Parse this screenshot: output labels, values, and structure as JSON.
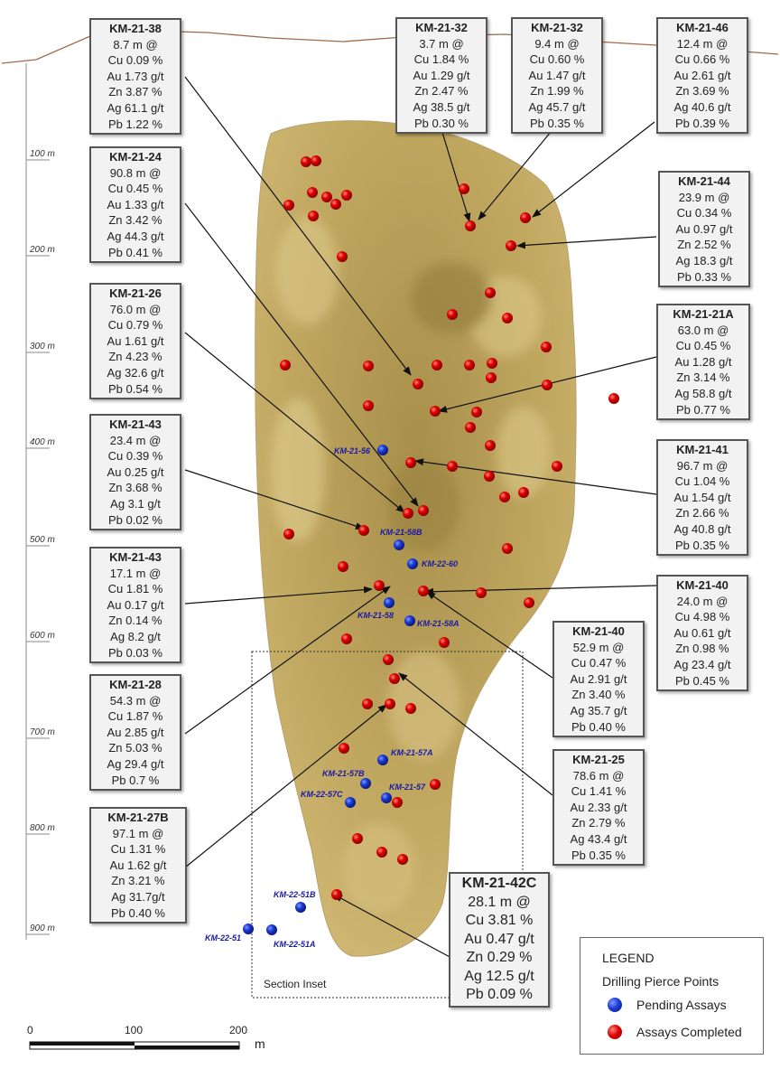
{
  "colors": {
    "assays_completed": "#e00000",
    "pending_assays": "#1c3bd6",
    "lens_fill": "#b39a52",
    "surface_line": "#a06a4a"
  },
  "depth_axis": {
    "unit": "m",
    "labels": [
      "100 m",
      "200 m",
      "300 m",
      "400 m",
      "500 m",
      "600 m",
      "700 m",
      "800 m",
      "900 m"
    ]
  },
  "callouts": [
    {
      "hole": "KM-21-38",
      "lines": [
        "8.7 m @",
        "Cu 0.09 %",
        "Au 1.73 g/t",
        "Zn 3.87 %",
        "Ag 61.1 g/t",
        "Pb 1.22 %"
      ]
    },
    {
      "hole": "KM-21-32",
      "lines": [
        "3.7 m @",
        "Cu 1.84 %",
        "Au 1.29 g/t",
        "Zn 2.47 %",
        "Ag 38.5 g/t",
        "Pb 0.30 %"
      ]
    },
    {
      "hole": "KM-21-32",
      "lines": [
        "9.4 m @",
        "Cu 0.60 %",
        "Au 1.47 g/t",
        "Zn 1.99 %",
        "Ag 45.7 g/t",
        "Pb 0.35 %"
      ]
    },
    {
      "hole": "KM-21-46",
      "lines": [
        "12.4 m @",
        "Cu 0.66 %",
        "Au 2.61 g/t",
        "Zn 3.69 %",
        "Ag 40.6 g/t",
        "Pb 0.39 %"
      ]
    },
    {
      "hole": "KM-21-24",
      "lines": [
        "90.8 m @",
        "Cu 0.45 %",
        "Au 1.33 g/t",
        "Zn 3.42 %",
        "Ag 44.3 g/t",
        "Pb 0.41 %"
      ]
    },
    {
      "hole": "KM-21-44",
      "lines": [
        "23.9 m @",
        "Cu 0.34 %",
        "Au 0.97 g/t",
        "Zn 2.52 %",
        "Ag 18.3 g/t",
        "Pb 0.33 %"
      ]
    },
    {
      "hole": "KM-21-26",
      "lines": [
        "76.0 m @",
        "Cu 0.79 %",
        "Au 1.61 g/t",
        "Zn 4.23 %",
        "Ag 32.6 g/t",
        "Pb 0.54 %"
      ]
    },
    {
      "hole": "KM-21-21A",
      "lines": [
        "63.0 m @",
        "Cu 0.45 %",
        "Au 1.28 g/t",
        "Zn 3.14 %",
        "Ag 58.8 g/t",
        "Pb 0.77 %"
      ]
    },
    {
      "hole": "KM-21-43",
      "lines": [
        "23.4 m @",
        "Cu 0.39 %",
        "Au 0.25 g/t",
        "Zn 3.68 %",
        "Ag 3.1 g/t",
        "Pb 0.02 %"
      ]
    },
    {
      "hole": "KM-21-41",
      "lines": [
        "96.7 m @",
        "Cu 1.04 %",
        "Au 1.54 g/t",
        "Zn 2.66 %",
        "Ag 40.8 g/t",
        "Pb 0.35 %"
      ]
    },
    {
      "hole": "KM-21-43",
      "lines": [
        "17.1 m @",
        "Cu 1.81 %",
        "Au 0.17 g/t",
        "Zn 0.14 %",
        "Ag 8.2 g/t",
        "Pb 0.03 %"
      ]
    },
    {
      "hole": "KM-21-40",
      "lines": [
        "24.0 m @",
        "Cu 4.98 %",
        "Au 0.61 g/t",
        "Zn 0.98 %",
        "Ag 23.4 g/t",
        "Pb 0.45 %"
      ]
    },
    {
      "hole": "KM-21-40",
      "lines": [
        "52.9 m @",
        "Cu 0.47 %",
        "Au 2.91 g/t",
        "Zn 3.40 %",
        "Ag 35.7 g/t",
        "Pb 0.40 %"
      ]
    },
    {
      "hole": "KM-21-28",
      "lines": [
        "54.3 m @",
        "Cu 1.87 %",
        "Au 2.85 g/t",
        "Zn 5.03 %",
        "Ag 29.4 g/t",
        "Pb 0.7 %"
      ]
    },
    {
      "hole": "KM-21-25",
      "lines": [
        "78.6 m @",
        "Cu 1.41 %",
        "Au 2.33 g/t",
        "Zn 2.79 %",
        "Ag 43.4 g/t",
        "Pb 0.35 %"
      ]
    },
    {
      "hole": "KM-21-27B",
      "lines": [
        "97.1 m @",
        "Cu 1.31 %",
        "Au 1.62 g/t",
        "Zn 3.21 %",
        "Ag 31.7g/t",
        "Pb 0.40 %"
      ]
    },
    {
      "hole": "KM-21-42C",
      "lines": [
        "28.1 m @",
        "Cu 3.81 %",
        "Au 0.47 g/t",
        "Zn 0.29 %",
        "Ag 12.5 g/t",
        "Pb 0.09 %"
      ]
    }
  ],
  "pending_holes": [
    "KM-21-56",
    "KM-21-58B",
    "KM-22-60",
    "KM-21-58",
    "KM-21-58A",
    "KM-21-57A",
    "KM-21-57B",
    "KM-21-57",
    "KM-22-57C",
    "KM-22-51B",
    "KM-22-51",
    "KM-22-51A"
  ],
  "section_inset_label": "Section Inset",
  "legend": {
    "title": "LEGEND",
    "subtitle": "Drilling Pierce Points",
    "items": [
      {
        "label": "Pending Assays",
        "color": "#1c3bd6"
      },
      {
        "label": "Assays Completed",
        "color": "#e00000"
      }
    ]
  },
  "scale_bar": {
    "ticks": [
      "0",
      "100",
      "200"
    ],
    "unit": "m"
  }
}
